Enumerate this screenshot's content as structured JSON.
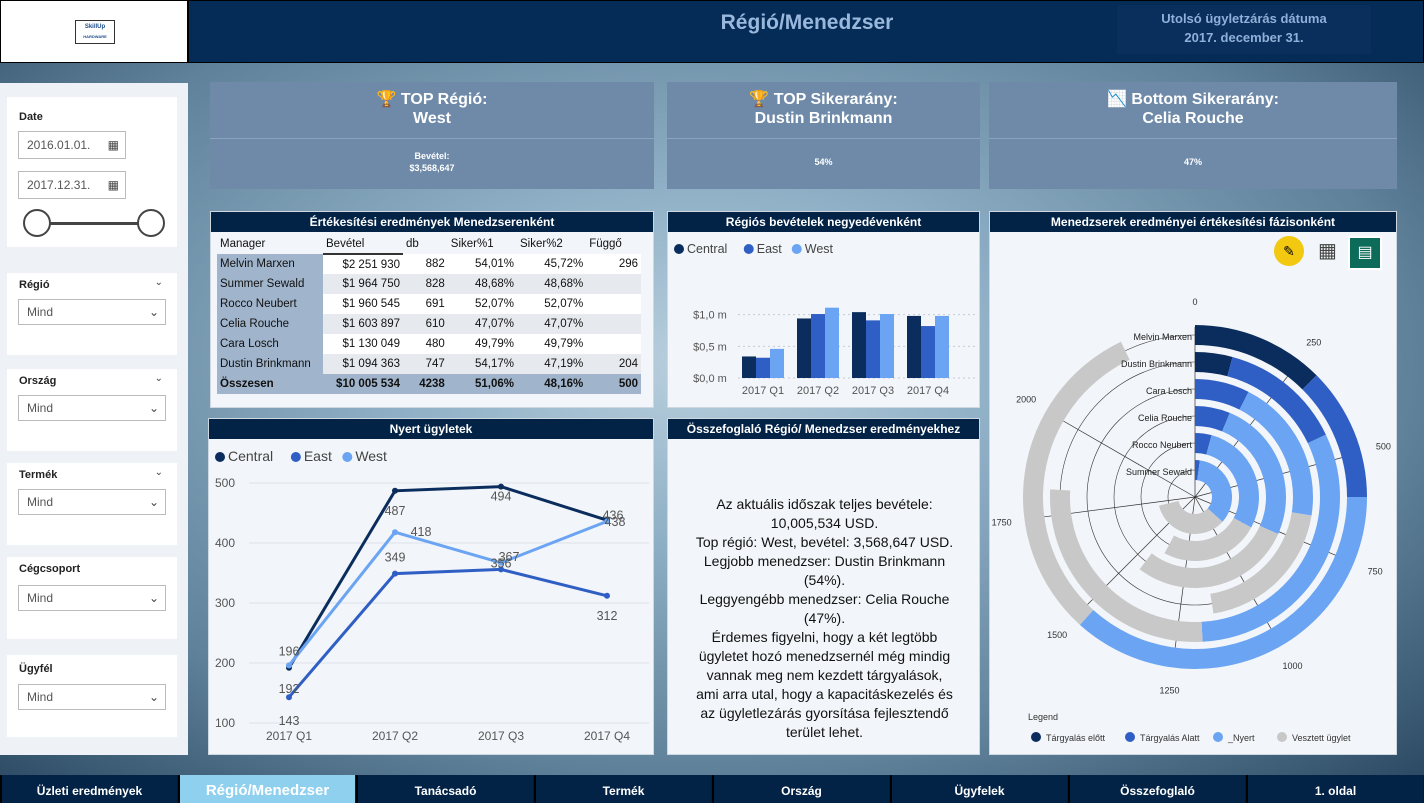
{
  "header": {
    "title": "Régió/Menedzser",
    "date_label": "Utolsó ügyletzárás dátuma",
    "date_value": "2017. december 31.",
    "logo_text": "SkillUp",
    "logo_sub": "HARDWARE"
  },
  "filters": {
    "date": {
      "label": "Date",
      "from": "2016.01.01.",
      "to": "2017.12.31."
    },
    "regio": {
      "label": "Régió",
      "value": "Mind"
    },
    "orszag": {
      "label": "Ország",
      "value": "Mind"
    },
    "termek": {
      "label": "Termék",
      "value": "Mind"
    },
    "cegcsoport": {
      "label": "Cégcsoport",
      "value": "Mind"
    },
    "ugyfel": {
      "label": "Ügyfél",
      "value": "Mind"
    }
  },
  "kpi": [
    {
      "icon": "trophy-icon",
      "title": "TOP Régió:",
      "name": "West",
      "sub_label": "Bevétel:",
      "sub_value": "$3,568,647"
    },
    {
      "icon": "trophy-icon",
      "title": "TOP Sikerarány:",
      "name": "Dustin Brinkmann",
      "sub_value": "54%"
    },
    {
      "icon": "chart-down-icon",
      "title": "Bottom Sikerarány:",
      "name": "Celia Rouche",
      "sub_value": "47%"
    }
  ],
  "table": {
    "title": "Értékesítési eredmények Menedzserenként",
    "columns": [
      "Manager",
      "Bevétel",
      "db",
      "Siker%1",
      "Siker%2",
      "Függő"
    ],
    "rows": [
      [
        "Melvin Marxen",
        "$2 251 930",
        "882",
        "54,01%",
        "45,72%",
        "296"
      ],
      [
        "Summer Sewald",
        "$1 964 750",
        "828",
        "48,68%",
        "48,68%",
        ""
      ],
      [
        "Rocco Neubert",
        "$1 960 545",
        "691",
        "52,07%",
        "52,07%",
        ""
      ],
      [
        "Celia Rouche",
        "$1 603 897",
        "610",
        "47,07%",
        "47,07%",
        ""
      ],
      [
        "Cara Losch",
        "$1 130 049",
        "480",
        "49,79%",
        "49,79%",
        ""
      ],
      [
        "Dustin Brinkmann",
        "$1 094 363",
        "747",
        "54,17%",
        "47,19%",
        "204"
      ]
    ],
    "total": [
      "Összesen",
      "$10 005 534",
      "4238",
      "51,06%",
      "48,16%",
      "500"
    ]
  },
  "bar_title": "Régiós bevételek negyedévenként",
  "line_title": "Nyert ügyletek",
  "radial_title": "Menedzserek eredményei értékesítési fázisonként",
  "summary_title": "Összefoglaló Régió/ Menedzser eredményekhez",
  "summary_lines": [
    "Az aktuális időszak teljes bevétele:",
    "10,005,534 USD.",
    "Top régió: West, bevétel: 3,568,647 USD.",
    "Legjobb menedzser: Dustin Brinkmann",
    "(54%).",
    "Leggyengébb menedzser: Celia Rouche",
    "(47%).",
    "Érdemes figyelni, hogy a két legtöbb",
    "ügyletet hozó menedzsernél még mindig",
    "vannak meg nem kezdett tárgyalások,",
    "ami arra utal, hogy a kapacitáskezelés és",
    "az ügyletlezárás gyorsítása fejlesztendő",
    "terület lehet."
  ],
  "colors": {
    "central": "#0b2d5e",
    "east": "#2f5fc4",
    "west": "#6aa4f2",
    "lost": "#c8c8c8"
  },
  "chart_data": [
    {
      "type": "bar",
      "title": "Régiós bevételek negyedévenként",
      "categories": [
        "2017 Q1",
        "2017 Q2",
        "2017 Q3",
        "2017 Q4"
      ],
      "series": [
        {
          "name": "Central",
          "values": [
            0.34,
            0.94,
            1.04,
            0.98
          ]
        },
        {
          "name": "East",
          "values": [
            0.32,
            1.01,
            0.91,
            0.82
          ]
        },
        {
          "name": "West",
          "values": [
            0.46,
            1.11,
            1.01,
            0.98
          ]
        }
      ],
      "y_ticks": [
        "$0,0 m",
        "$0,5 m",
        "$1,0 m"
      ],
      "ylim": [
        0,
        1.2
      ]
    },
    {
      "type": "line",
      "title": "Nyert ügyletek",
      "categories": [
        "2017 Q1",
        "2017 Q2",
        "2017 Q3",
        "2017 Q4"
      ],
      "series": [
        {
          "name": "Central",
          "values": [
            192,
            487,
            494,
            438
          ]
        },
        {
          "name": "East",
          "values": [
            143,
            349,
            356,
            312
          ]
        },
        {
          "name": "West",
          "values": [
            196,
            418,
            367,
            436
          ]
        }
      ],
      "y_ticks": [
        "100",
        "200",
        "300",
        "400",
        "500"
      ],
      "ylim": [
        100,
        500
      ]
    },
    {
      "type": "radial-bar",
      "title": "Menedzserek eredményei értékesítési fázisonként",
      "categories": [
        "Melvin Marxen",
        "Dustin Brinkmann",
        "Cara Losch",
        "Celia Rouche",
        "Rocco Neubert",
        "Summer Sewald"
      ],
      "series": [
        {
          "name": "Tárgyalás előtt",
          "values": [
            300,
            100,
            0,
            0,
            0,
            0
          ]
        },
        {
          "name": "Tárgyalás Alatt",
          "values": [
            300,
            330,
            180,
            150,
            100,
            50
          ]
        },
        {
          "name": "_Nyert",
          "values": [
            880,
            750,
            480,
            610,
            690,
            830
          ]
        },
        {
          "name": "Vesztett ügylet",
          "values": [
            750,
            640,
            480,
            690,
            600,
            830
          ]
        }
      ],
      "axis_ticks": [
        "0",
        "250",
        "500",
        "750",
        "1000",
        "1250",
        "1500",
        "1750",
        "2000"
      ],
      "legend_title": "Legend"
    }
  ],
  "tabs": [
    "Üzleti eredmények",
    "Régió/Menedzser",
    "Tanácsadó",
    "Termék",
    "Ország",
    "Ügyfelek",
    "Összefoglaló",
    "1. oldal"
  ]
}
